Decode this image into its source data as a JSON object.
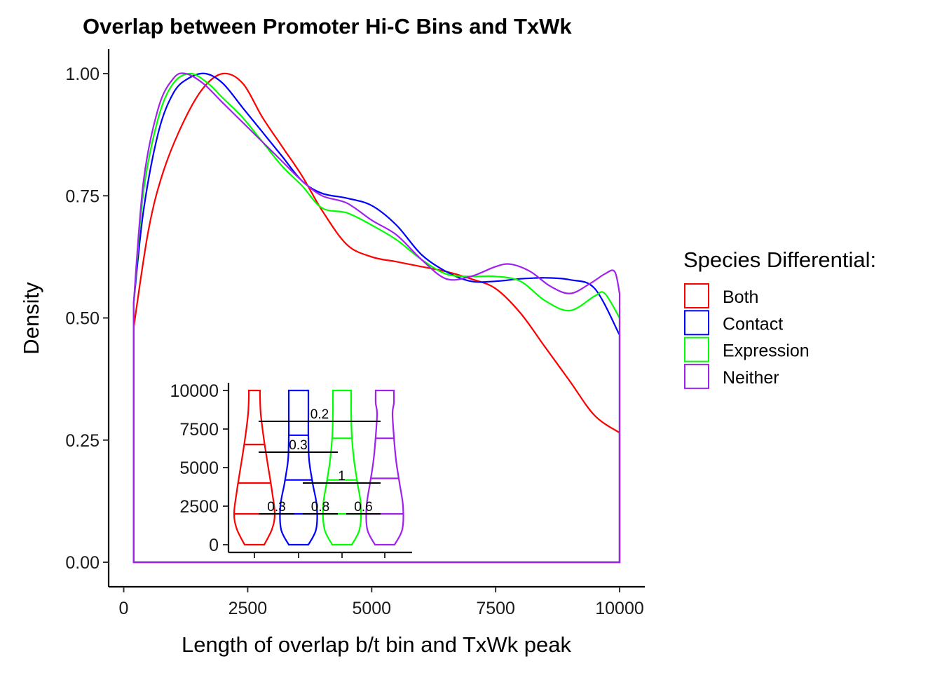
{
  "chart_data": [
    {
      "type": "line",
      "title": "Overlap between Promoter Hi-C Bins and TxWk",
      "xlabel": "Length of overlap b/t bin and TxWk peak",
      "ylabel": "Density",
      "xlim": [
        0,
        10000
      ],
      "ylim": [
        0,
        1.05
      ],
      "xticks": [
        0,
        2500,
        5000,
        7500,
        10000
      ],
      "xtick_labels": [
        "0",
        "2500",
        "5000",
        "7500",
        "10000"
      ],
      "yticks": [
        0,
        0.25,
        0.5,
        0.75,
        1.0
      ],
      "ytick_labels": [
        "0.00",
        "0.25",
        "0.50",
        "0.75",
        "1.00"
      ],
      "grid": false,
      "legend": {
        "title": "Species Differential:",
        "placement": "right",
        "entries": [
          "Both",
          "Contact",
          "Expression",
          "Neither"
        ]
      },
      "series": [
        {
          "name": "Both",
          "color": "#FF0000",
          "x": [
            200,
            500,
            800,
            1200,
            1600,
            2000,
            2400,
            2800,
            3200,
            3600,
            4000,
            4500,
            5000,
            5500,
            6000,
            6500,
            7000,
            7500,
            8000,
            8500,
            9000,
            9500,
            10000
          ],
          "y": [
            0.48,
            0.68,
            0.8,
            0.9,
            0.97,
            1.0,
            0.98,
            0.91,
            0.85,
            0.79,
            0.72,
            0.65,
            0.625,
            0.615,
            0.605,
            0.595,
            0.58,
            0.56,
            0.51,
            0.44,
            0.37,
            0.3,
            0.265
          ]
        },
        {
          "name": "Contact",
          "color": "#0000FF",
          "x": [
            200,
            400,
            700,
            1000,
            1300,
            1650,
            2000,
            2400,
            2800,
            3200,
            3600,
            4000,
            4500,
            5000,
            5500,
            6000,
            6500,
            7000,
            7500,
            8000,
            8500,
            9000,
            9500,
            10000
          ],
          "y": [
            0.53,
            0.72,
            0.88,
            0.96,
            0.99,
            1.0,
            0.98,
            0.93,
            0.88,
            0.83,
            0.78,
            0.755,
            0.745,
            0.73,
            0.69,
            0.63,
            0.595,
            0.575,
            0.575,
            0.58,
            0.582,
            0.578,
            0.56,
            0.465
          ]
        },
        {
          "name": "Expression",
          "color": "#00FF00",
          "x": [
            200,
            400,
            700,
            1000,
            1350,
            1700,
            2000,
            2400,
            2800,
            3200,
            3600,
            4000,
            4500,
            5000,
            5500,
            6000,
            6500,
            7000,
            7500,
            8000,
            8500,
            9000,
            9500,
            9700,
            10000
          ],
          "y": [
            0.53,
            0.76,
            0.91,
            0.98,
            1.0,
            0.98,
            0.95,
            0.91,
            0.86,
            0.81,
            0.77,
            0.725,
            0.715,
            0.69,
            0.66,
            0.62,
            0.59,
            0.585,
            0.585,
            0.575,
            0.535,
            0.515,
            0.545,
            0.55,
            0.5
          ]
        },
        {
          "name": "Neither",
          "color": "#A020F0",
          "x": [
            200,
            400,
            700,
            1000,
            1250,
            1600,
            2000,
            2400,
            2800,
            3200,
            3600,
            4000,
            4500,
            5000,
            5500,
            6000,
            6500,
            7000,
            7500,
            7800,
            8200,
            8600,
            9000,
            9400,
            9700,
            9900,
            10000
          ],
          "y": [
            0.53,
            0.78,
            0.93,
            0.99,
            1.0,
            0.98,
            0.94,
            0.9,
            0.86,
            0.82,
            0.78,
            0.75,
            0.735,
            0.7,
            0.67,
            0.62,
            0.58,
            0.585,
            0.605,
            0.61,
            0.595,
            0.565,
            0.55,
            0.57,
            0.59,
            0.595,
            0.55
          ]
        }
      ]
    },
    {
      "type": "violin",
      "ylim": [
        0,
        10000
      ],
      "yticks": [
        0,
        2500,
        5000,
        7500,
        10000
      ],
      "ytick_labels": [
        "0",
        "2500",
        "5000",
        "7500",
        "10000"
      ],
      "groups": [
        {
          "name": "Both",
          "color": "#FF0000",
          "quartiles": [
            2000,
            4000,
            6500
          ],
          "max": 10000,
          "min": 0
        },
        {
          "name": "Contact",
          "color": "#0000FF",
          "quartiles": [
            2000,
            4200,
            7100
          ],
          "max": 10000,
          "min": 0
        },
        {
          "name": "Expression",
          "color": "#00FF00",
          "quartiles": [
            2000,
            4200,
            6900
          ],
          "max": 10000,
          "min": 0
        },
        {
          "name": "Neither",
          "color": "#A020F0",
          "quartiles": [
            2000,
            4300,
            6900
          ],
          "max": 10000,
          "min": 0
        }
      ],
      "annotations": [
        {
          "label": "0.2",
          "from": 1,
          "to": 4,
          "y": 8000
        },
        {
          "label": "0.3",
          "from": 1,
          "to": 3,
          "y": 6000
        },
        {
          "label": "1",
          "from": 2,
          "to": 4,
          "y": 4000
        },
        {
          "label": "0.3",
          "from": 1,
          "to": 2,
          "y": 2000
        },
        {
          "label": "0.8",
          "from": 2,
          "to": 3,
          "y": 2000
        },
        {
          "label": "0.6",
          "from": 3,
          "to": 4,
          "y": 2000
        }
      ]
    }
  ]
}
